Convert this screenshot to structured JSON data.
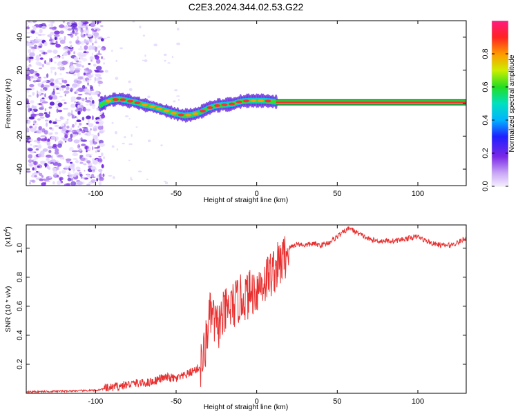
{
  "title": "C2E3.2024.344.02.53.G22",
  "chart_data": [
    {
      "type": "heatmap",
      "xlabel": "Height of straight line (km)",
      "ylabel": "Frequency (Hz)",
      "xlim": [
        -143,
        130
      ],
      "ylim": [
        -50,
        50
      ],
      "xticks": [
        -100,
        -50,
        0,
        50,
        100
      ],
      "yticks": [
        -40,
        -20,
        0,
        20,
        40
      ],
      "x_tick_labels": [
        "-100",
        "-50",
        "0",
        "50",
        "100"
      ],
      "y_tick_labels": [
        "-40",
        "-20",
        "0",
        "20",
        "40"
      ],
      "noise_region_x": [
        -143,
        -95
      ],
      "centerline": {
        "x": [
          -100,
          -95,
          -90,
          -85,
          -80,
          -75,
          -70,
          -65,
          -60,
          -55,
          -50,
          -45,
          -40,
          -35,
          -30,
          -25,
          -20,
          -15,
          -10,
          -5,
          0,
          5,
          10,
          15,
          20,
          30,
          50,
          80,
          110,
          130
        ],
        "y": [
          -3,
          0,
          2,
          2.5,
          1.5,
          0.5,
          -1,
          -2,
          -3.5,
          -5,
          -6.5,
          -7.5,
          -7,
          -5.5,
          -3,
          -1.5,
          -1,
          -0.5,
          1,
          1.5,
          1.5,
          1.5,
          1,
          0.5,
          0.5,
          0.5,
          0.5,
          0.5,
          0.5,
          0.5
        ]
      },
      "colorbar": {
        "label": "Normalized spectral amplitude",
        "ticks": [
          0.0,
          0.2,
          0.4,
          0.6,
          0.8
        ],
        "tick_labels": [
          "0.0",
          "0.2",
          "0.4",
          "0.6",
          "0.8"
        ],
        "range": [
          0,
          1
        ]
      }
    },
    {
      "type": "line",
      "xlabel": "Height of straight line (km)",
      "ylabel": "SNR (10 * v/v)",
      "multiplier_label": "(x10",
      "multiplier_exp": "4",
      "multiplier_close": ")",
      "xlim": [
        -143,
        130
      ],
      "ylim": [
        0.0,
        1.16
      ],
      "xticks": [
        -100,
        -50,
        0,
        50,
        100
      ],
      "yticks": [
        0.2,
        0.4,
        0.6,
        0.8,
        1.0
      ],
      "x_tick_labels": [
        "-100",
        "-50",
        "0",
        "50",
        "100"
      ],
      "y_tick_labels": [
        "0.2",
        "0.4",
        "0.6",
        "0.8",
        "1.0"
      ],
      "color": "#e83030",
      "series": [
        {
          "x": [
            -143,
            -120,
            -100,
            -95,
            -90,
            -85,
            -80,
            -75,
            -70,
            -65,
            -60,
            -55,
            -50,
            -45,
            -40,
            -35,
            -32,
            -30,
            -28,
            -25,
            -22,
            -20,
            -15,
            -10,
            -5,
            0,
            5,
            10,
            15,
            18,
            20,
            25,
            30,
            35,
            40,
            45,
            50,
            55,
            58,
            60,
            65,
            70,
            75,
            80,
            85,
            90,
            95,
            100,
            105,
            110,
            115,
            120,
            125,
            130
          ],
          "y": [
            0.01,
            0.015,
            0.02,
            0.03,
            0.04,
            0.05,
            0.06,
            0.07,
            0.07,
            0.08,
            0.1,
            0.11,
            0.1,
            0.12,
            0.15,
            0.18,
            0.3,
            0.5,
            0.55,
            0.45,
            0.5,
            0.55,
            0.6,
            0.65,
            0.68,
            0.72,
            0.78,
            0.84,
            0.9,
            0.95,
            1.0,
            1.03,
            1.02,
            1.03,
            1.02,
            1.04,
            1.08,
            1.12,
            1.14,
            1.12,
            1.09,
            1.06,
            1.05,
            1.05,
            1.05,
            1.06,
            1.07,
            1.08,
            1.05,
            1.03,
            1.02,
            1.02,
            1.04,
            1.07
          ]
        }
      ]
    }
  ]
}
